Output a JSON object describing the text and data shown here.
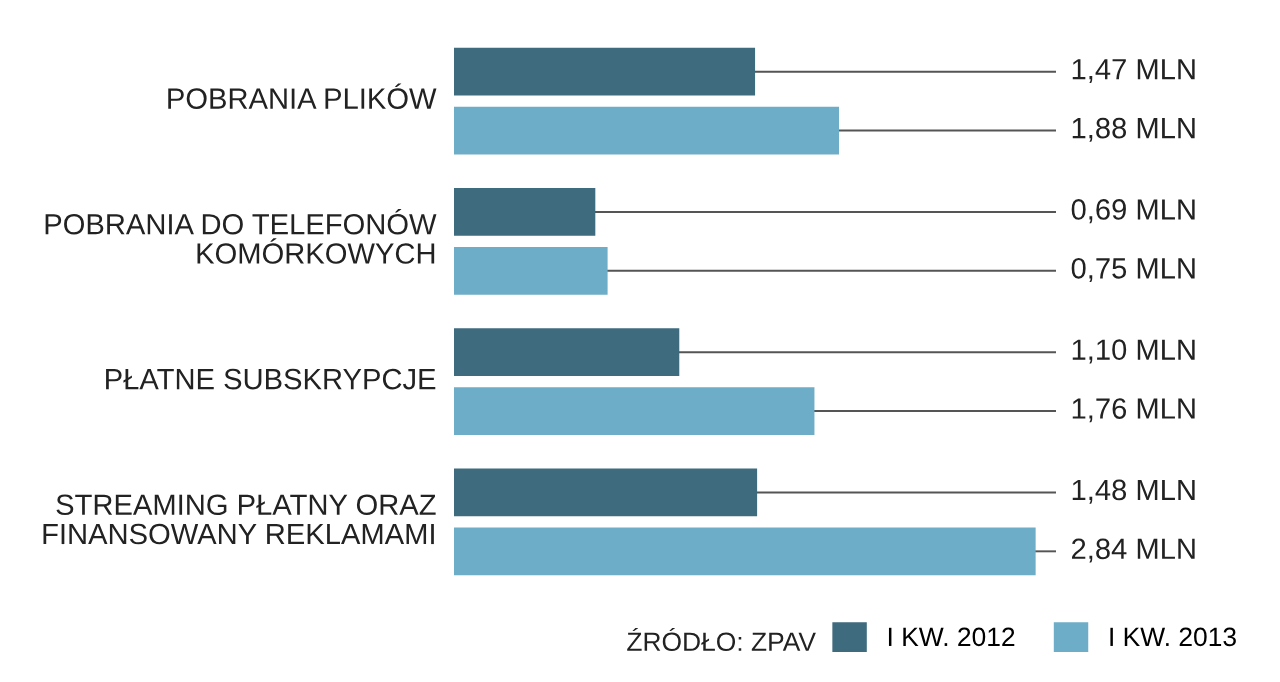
{
  "chart_data": {
    "type": "bar",
    "orientation": "horizontal",
    "categories": [
      "POBRANIA PLIKÓW",
      "POBRANIA DO TELEFONÓW\nKOMÓRKOWYCH",
      "PŁATNE SUBSKRYPCJE",
      "STREAMING PŁATNY ORAZ\nFINANSOWANY REKLAMAMI"
    ],
    "series": [
      {
        "name": "I KW. 2012",
        "color": "#3e6b7e",
        "values": [
          1.47,
          0.69,
          1.1,
          1.48
        ],
        "value_labels": [
          "1,47 MLN",
          "0,69 MLN",
          "1,10 MLN",
          "1,48 MLN"
        ]
      },
      {
        "name": "I KW. 2013",
        "color": "#6eadc7",
        "values": [
          1.88,
          0.75,
          1.76,
          2.84
        ],
        "value_labels": [
          "1,88 MLN",
          "0,75 MLN",
          "1,76 MLN",
          "2,84 MLN"
        ]
      }
    ],
    "annotations": [
      "ŹRÓDŁO: ZPAV"
    ],
    "legend": "bottom right"
  }
}
